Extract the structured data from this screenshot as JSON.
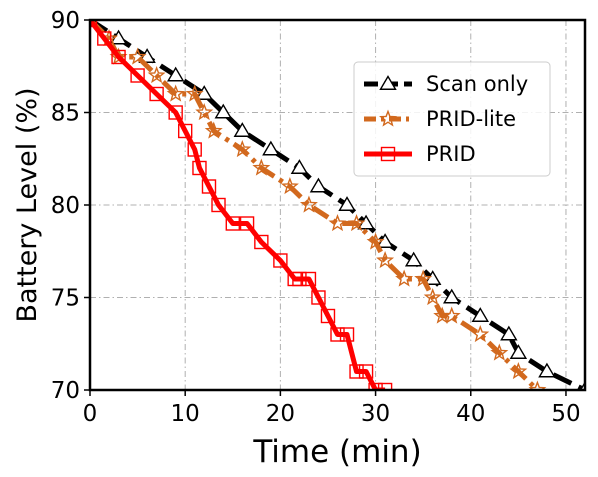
{
  "chart_data": {
    "type": "line",
    "xlabel": "Time (min)",
    "ylabel": "Battery Level (%)",
    "xlim": [
      0,
      52
    ],
    "ylim": [
      70,
      90
    ],
    "xticks": [
      0,
      10,
      20,
      30,
      40,
      50
    ],
    "yticks": [
      70,
      75,
      80,
      85,
      90
    ],
    "grid": true,
    "legend_position": "upper-right",
    "series": [
      {
        "name": "Scan only",
        "color": "#000000",
        "line_style": "dashed",
        "marker": "triangle",
        "x": [
          0,
          3,
          6,
          9,
          12,
          14,
          16,
          19,
          22,
          24,
          27,
          29,
          31,
          34,
          36,
          38,
          41,
          44,
          45,
          48,
          52
        ],
        "y": [
          90,
          89,
          88,
          87,
          86,
          85,
          84,
          83,
          82,
          81,
          80,
          79,
          78,
          77,
          76,
          75,
          74,
          73,
          72,
          71,
          70
        ]
      },
      {
        "name": "PRID-lite",
        "color": "#d2691e",
        "line_style": "dashdot",
        "marker": "star",
        "x": [
          0,
          2,
          3,
          5,
          7,
          9,
          11,
          12,
          13,
          16,
          18,
          21,
          23,
          26,
          28,
          30,
          31,
          33,
          35,
          36,
          37,
          38,
          41,
          43,
          45,
          47
        ],
        "y": [
          90,
          89,
          88,
          88,
          87,
          86,
          86,
          85,
          84,
          83,
          82,
          81,
          80,
          79,
          79,
          78,
          77,
          76,
          76,
          75,
          74,
          74,
          73,
          72,
          71,
          70
        ]
      },
      {
        "name": "PRID",
        "color": "#ff0000",
        "line_style": "solid",
        "marker": "square",
        "x": [
          0,
          1.5,
          3,
          5,
          7,
          9,
          10,
          11,
          11.5,
          12.5,
          13.5,
          15,
          16.5,
          18,
          20,
          21.5,
          22,
          23,
          24,
          25,
          26,
          27,
          28,
          29,
          30,
          31
        ],
        "y": [
          90,
          89,
          88,
          87,
          86,
          85,
          84,
          83,
          82,
          81,
          80,
          79,
          79,
          78,
          77,
          76,
          76,
          76,
          75,
          74,
          73,
          73,
          71,
          71,
          70,
          70
        ]
      }
    ]
  }
}
